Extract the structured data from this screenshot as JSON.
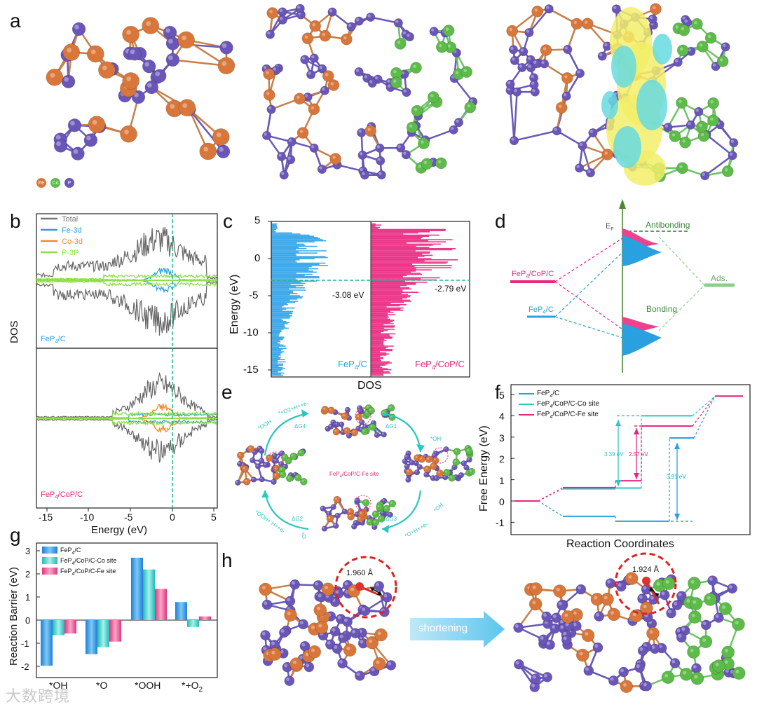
{
  "panel_labels": {
    "a": "a",
    "b": "b",
    "c": "c",
    "d": "d",
    "e": "e",
    "f": "f",
    "g": "g",
    "h": "h"
  },
  "colors": {
    "fe": "#d9773b",
    "co": "#5dbb49",
    "p": "#6a55b8",
    "blue": "#29a0e0",
    "pink": "#e8287e",
    "teal": "#2cc6c0",
    "green": "#5a9a40",
    "yellow": "#f2ee6a",
    "cyan": "#66dbe0"
  },
  "panel_a": {
    "legend": [
      {
        "symbol": "Fe",
        "color": "#d9773b"
      },
      {
        "symbol": "Co",
        "color": "#5dbb49"
      },
      {
        "symbol": "P",
        "color": "#6a55b8"
      }
    ]
  },
  "panel_b": {
    "legend": [
      {
        "label": "Total",
        "color": "#777777"
      },
      {
        "label": "Fe-3d",
        "color": "#29a0e0"
      },
      {
        "label": "Co-3d",
        "color": "#f08a2a"
      },
      {
        "label": "P-3P",
        "color": "#8ee04a"
      }
    ],
    "top_sample": "FeP4/C",
    "bottom_sample": "FeP4/CoP/C",
    "xlabel": "Energy (eV)",
    "ylabel": "DOS",
    "xticks": [
      "-15",
      "-10",
      "-5",
      "0",
      "5"
    ]
  },
  "panel_c": {
    "ylabel": "Energy (eV)",
    "xlabel": "DOS",
    "yticks": [
      "5",
      "0",
      "-5",
      "-10",
      "-15"
    ],
    "left_value": "-3.08 eV",
    "right_value": "-2.79 eV",
    "left_name": "FeP4/C",
    "right_name": "FeP4/CoP/C"
  },
  "panel_d": {
    "ef": "EF",
    "antibonding": "Antibonding",
    "bonding": "Bonding",
    "ads": "Ads.",
    "top_label": "FeP4/CoP/C",
    "bottom_label": "FeP4/C"
  },
  "panel_e": {
    "center": "FeP4/CoP/C-Fe site",
    "step_tl_a": "*OOH",
    "step_tl_b": "*+O2+H++e-",
    "dg4": "ΔG4",
    "dg1": "ΔG1",
    "oh_right": "*OH",
    "dg3": "ΔG3",
    "step_br_a": "*O+H++e-",
    "step_br_b": "*OH",
    "dg2": "ΔG2",
    "step_bl_a": "*OOH+ H++e-",
    "step_bl_b": "*O"
  },
  "panel_f": {
    "legend": [
      {
        "label": "FeP4/C",
        "color": "#29a0e0"
      },
      {
        "label": "FeP4/CoP/C-Co site",
        "color": "#2cc6c0"
      },
      {
        "label": "FeP4/CoP/C-Fe site",
        "color": "#e8287e"
      }
    ],
    "ylabel": "Free Energy (eV)",
    "xlabel": "Reaction Coordinates",
    "yticks": [
      "5",
      "4",
      "3",
      "2",
      "1",
      "0",
      "-1"
    ],
    "barrier_co": "3.39 eV",
    "barrier_fe": "2.57 eV",
    "barrier_c": "3.91 eV"
  },
  "chart_data": [
    {
      "type": "bar",
      "panel": "g",
      "categories": [
        "*OH",
        "*O",
        "*OOH",
        "*+O2"
      ],
      "series": [
        {
          "name": "FeP4/C",
          "values": [
            -1.97,
            -1.47,
            2.7,
            0.78
          ]
        },
        {
          "name": "FeP4/CoP/C-Co site",
          "values": [
            -0.65,
            -1.17,
            2.19,
            -0.3
          ]
        },
        {
          "name": "FeP4/CoP/C-Fe site",
          "values": [
            -0.58,
            -0.93,
            1.35,
            0.16
          ]
        }
      ],
      "ylabel": "Reaction Barrier (eV)",
      "ylim": [
        -2.4,
        3.4
      ],
      "yticks": [
        "3",
        "2",
        "1",
        "0",
        "-1",
        "-2"
      ]
    },
    {
      "type": "line",
      "panel": "f",
      "series": [
        {
          "name": "FeP4/C",
          "values": [
            0,
            -0.72,
            -0.95,
            2.96,
            4.92
          ]
        },
        {
          "name": "FeP4/CoP/C-Co site",
          "values": [
            0,
            0.57,
            0.61,
            4.0,
            4.92
          ]
        },
        {
          "name": "FeP4/CoP/C-Fe site",
          "values": [
            0,
            0.63,
            0.95,
            3.52,
            4.92
          ]
        }
      ],
      "ylim": [
        -1.4,
        5.4
      ]
    }
  ],
  "panel_h": {
    "bond_left": "1.960 Å",
    "bond_right": "1.924 Å",
    "arrow": "shortening"
  },
  "watermark": "大数跨境"
}
